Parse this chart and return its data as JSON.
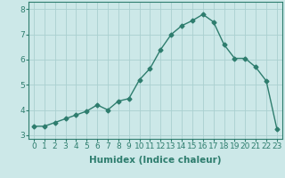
{
  "x": [
    0,
    1,
    2,
    3,
    4,
    5,
    6,
    7,
    8,
    9,
    10,
    11,
    12,
    13,
    14,
    15,
    16,
    17,
    18,
    19,
    20,
    21,
    22,
    23
  ],
  "y": [
    3.35,
    3.35,
    3.5,
    3.65,
    3.8,
    3.95,
    4.2,
    4.0,
    4.35,
    4.45,
    5.2,
    5.65,
    6.4,
    7.0,
    7.35,
    7.55,
    7.8,
    7.5,
    6.6,
    6.05,
    6.05,
    5.7,
    5.15,
    3.25
  ],
  "line_color": "#2e7d6e",
  "marker": "D",
  "marker_size": 2.5,
  "bg_color": "#cce8e8",
  "grid_color": "#aad0d0",
  "xlabel": "Humidex (Indice chaleur)",
  "xlim": [
    -0.5,
    23.5
  ],
  "ylim": [
    2.85,
    8.3
  ],
  "yticks": [
    3,
    4,
    5,
    6,
    7,
    8
  ],
  "xticks": [
    0,
    1,
    2,
    3,
    4,
    5,
    6,
    7,
    8,
    9,
    10,
    11,
    12,
    13,
    14,
    15,
    16,
    17,
    18,
    19,
    20,
    21,
    22,
    23
  ],
  "xlabel_fontsize": 7.5,
  "tick_fontsize": 6.5,
  "tick_color": "#2e7d6e",
  "axis_color": "#2e7d6e",
  "linewidth": 1.0
}
